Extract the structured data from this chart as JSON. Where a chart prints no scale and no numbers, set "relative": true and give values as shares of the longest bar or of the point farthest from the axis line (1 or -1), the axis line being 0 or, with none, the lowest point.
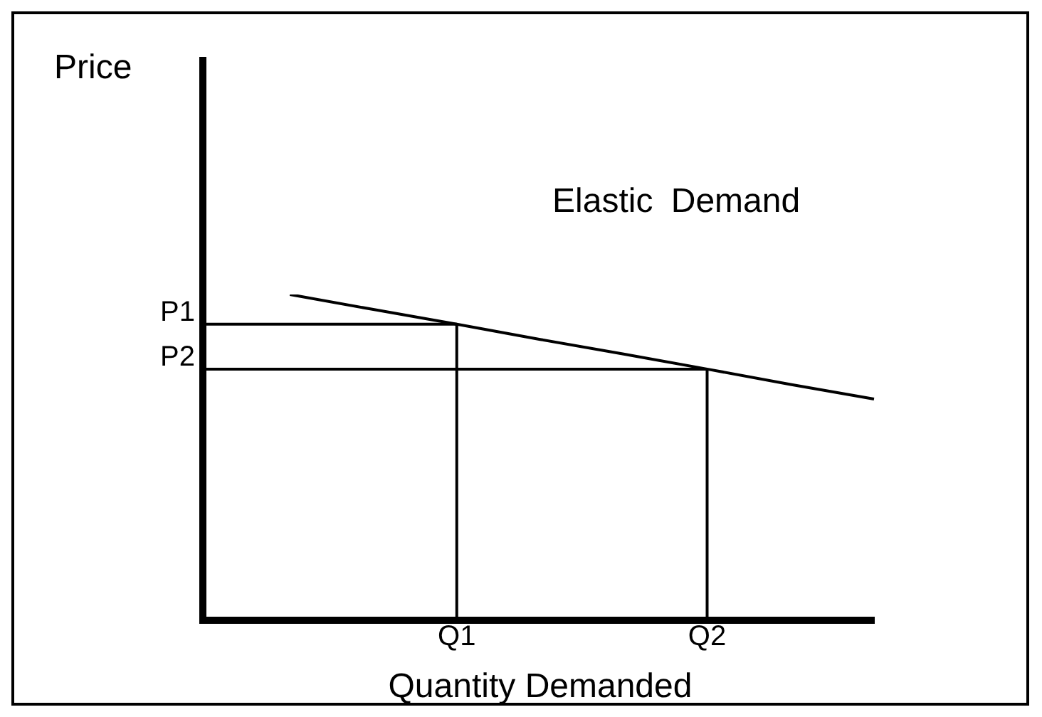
{
  "chart_data": {
    "type": "line",
    "xlabel": "Quantity Demanded",
    "relative": true,
    "marker": "none",
    "annotations": [
      "Price",
      "Elastic Demand"
    ],
    "categories": [
      null,
      null,
      null,
      "Q1",
      null,
      null,
      "Q2",
      null,
      null
    ],
    "series": [
      {
        "color": "#000000",
        "values": [
          null,
          1,
          0.954,
          0.909,
          0.862,
          0.817,
          0.771,
          0.724,
          0.679
        ]
      }
    ],
    "ref_lines": [
      {
        "axis": "y",
        "value": 0.909,
        "label": "P1",
        "color": "#000000"
      },
      {
        "axis": "y",
        "value": 0.771,
        "label": "P2",
        "color": "#000000"
      },
      {
        "axis": "x",
        "value": "Q1",
        "color": "#000000"
      },
      {
        "axis": "x",
        "value": "Q2",
        "color": "#000000"
      }
    ]
  }
}
